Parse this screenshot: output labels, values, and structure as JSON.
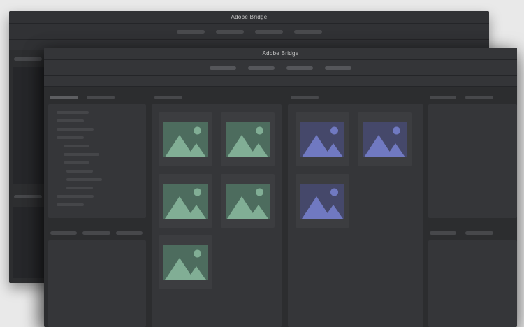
{
  "windows": {
    "back": {
      "title": "Adobe Bridge",
      "toolbar": {
        "pill_count": 4
      },
      "sidebar": {
        "top_tab_count": 1,
        "bottom_tab_count": 1
      }
    },
    "front": {
      "title": "Adobe Bridge",
      "toolbar": {
        "pill_count": 4
      },
      "left_sidebar": {
        "top_tabs": [
          {
            "state": "active"
          },
          {
            "state": "inactive"
          }
        ],
        "tree_lines": [
          {
            "indent": 0,
            "width": 46
          },
          {
            "indent": 0,
            "width": 39
          },
          {
            "indent": 0,
            "width": 53
          },
          {
            "indent": 0,
            "width": 39
          },
          {
            "indent": 1,
            "width": 37
          },
          {
            "indent": 1,
            "width": 51
          },
          {
            "indent": 1,
            "width": 37
          },
          {
            "indent": 2,
            "width": 38
          },
          {
            "indent": 2,
            "width": 51
          },
          {
            "indent": 2,
            "width": 38
          },
          {
            "indent": 0,
            "width": 53
          },
          {
            "indent": 0,
            "width": 39
          }
        ],
        "bottom_tab_widths": [
          38,
          40,
          38
        ]
      },
      "content_column": {
        "header_pill": true,
        "thumbnails": {
          "count": 5,
          "palette": "green"
        }
      },
      "preview_column": {
        "header_pill": true,
        "thumbnails": {
          "count": 3,
          "palette": "purple"
        }
      },
      "right_sidebar": {
        "top_tab_count": 2,
        "bottom_tab_count": 2
      }
    }
  },
  "icons": {
    "thumbnail_icon": "image-placeholder-icon (mountains with sun)"
  },
  "colors": {
    "page_bg": "#e9e9e9",
    "front_bar": "#343538",
    "front_content": "#2c2d2f",
    "front_panel": "#353639",
    "back_bar": "#313235",
    "back_content": "#2d2e30",
    "back_panel": "#26272a",
    "separator": "#242528",
    "card": "#3c3d40",
    "pill": "#55565a",
    "pill_back": "#4a4b4e",
    "pill_dim": "#47484b",
    "pill_active": "#5d5e61",
    "skeleton": "#454649",
    "title_text": "#c9c9c9",
    "green_image_bg": "#4d6c5e",
    "green_image_shape": "#81ae95",
    "purple_image_bg": "#45486a",
    "purple_image_shape": "#7079c1"
  }
}
